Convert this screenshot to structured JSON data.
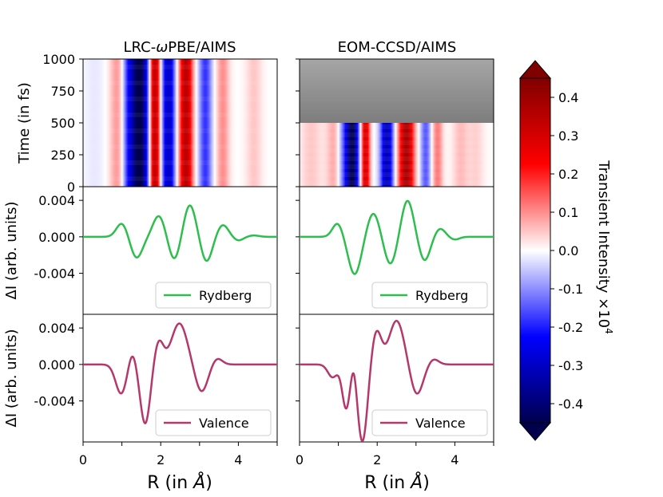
{
  "chart_data": {
    "type": "figure-grid",
    "columns": [
      {
        "title_prefix": "LRC-",
        "title_greek": "ω",
        "title_suffix": "PBE/AIMS",
        "heatmap": {
          "type": "heatmap",
          "ylabel": "Time (in fs)",
          "xlim": [
            0,
            5
          ],
          "ylim": [
            0,
            1000
          ],
          "yticks": [
            "0",
            "250",
            "500",
            "750",
            "1000"
          ],
          "time_range": [
            0,
            1000
          ],
          "stripes": [
            {
              "r": 0.3,
              "width": 0.2,
              "value": -0.02
            },
            {
              "r": 0.9,
              "width": 0.15,
              "value": 0.1
            },
            {
              "r": 1.15,
              "width": 0.12,
              "value": -0.15
            },
            {
              "r": 1.45,
              "width": 0.16,
              "value": -0.46
            },
            {
              "r": 1.85,
              "width": 0.09,
              "value": 0.36
            },
            {
              "r": 2.2,
              "width": 0.12,
              "value": -0.3
            },
            {
              "r": 2.65,
              "width": 0.12,
              "value": 0.35
            },
            {
              "r": 3.15,
              "width": 0.12,
              "value": -0.18
            },
            {
              "r": 3.6,
              "width": 0.12,
              "value": 0.1
            },
            {
              "r": 4.4,
              "width": 0.15,
              "value": 0.05
            }
          ]
        },
        "rydberg": {
          "type": "line",
          "legend": "Rydberg",
          "color": "#2dbe4e",
          "ylabel": "ΔI (arb. units)",
          "ylim": [
            -0.0085,
            0.0055
          ],
          "yticks": [
            "0.004",
            "0.000",
            "-0.004"
          ],
          "components": [
            {
              "amp": 0.0015,
              "center": 1.0,
              "width": 0.14
            },
            {
              "amp": -0.0023,
              "center": 1.38,
              "width": 0.15
            },
            {
              "amp": 0.0023,
              "center": 1.95,
              "width": 0.15
            },
            {
              "amp": -0.0025,
              "center": 2.35,
              "width": 0.14
            },
            {
              "amp": 0.0035,
              "center": 2.75,
              "width": 0.15
            },
            {
              "amp": -0.0027,
              "center": 3.18,
              "width": 0.14
            },
            {
              "amp": 0.0013,
              "center": 3.6,
              "width": 0.14
            },
            {
              "amp": -0.0004,
              "center": 4.0,
              "width": 0.12
            },
            {
              "amp": 0.00015,
              "center": 4.4,
              "width": 0.13
            }
          ]
        },
        "valence": {
          "type": "line",
          "legend": "Valence",
          "color": "#b5386b",
          "ylabel": "ΔI (arb. units)",
          "ylim": [
            -0.0085,
            0.0055
          ],
          "yticks": [
            "0.004",
            "0.000",
            "-0.004"
          ],
          "components": [
            {
              "amp": -0.0032,
              "center": 0.98,
              "width": 0.14
            },
            {
              "amp": 0.0015,
              "center": 1.27,
              "width": 0.1
            },
            {
              "amp": -0.0065,
              "center": 1.6,
              "width": 0.13
            },
            {
              "amp": 0.0026,
              "center": 1.95,
              "width": 0.12
            },
            {
              "amp": 0.0045,
              "center": 2.48,
              "width": 0.2
            },
            {
              "amp": -0.003,
              "center": 3.05,
              "width": 0.16
            },
            {
              "amp": 0.0007,
              "center": 3.45,
              "width": 0.13
            }
          ]
        }
      },
      {
        "title_prefix": "",
        "title_greek": "",
        "title_suffix": "EOM-CCSD/AIMS",
        "heatmap": {
          "type": "heatmap",
          "xlim": [
            0,
            5
          ],
          "ylim": [
            0,
            1000
          ],
          "time_range": [
            0,
            500
          ],
          "unavailable_range": [
            500,
            1000
          ],
          "stripes": [
            {
              "r": 0.3,
              "width": 0.2,
              "value": 0.05
            },
            {
              "r": 0.9,
              "width": 0.15,
              "value": 0.08
            },
            {
              "r": 1.1,
              "width": 0.1,
              "value": -0.1
            },
            {
              "r": 1.35,
              "width": 0.12,
              "value": -0.45
            },
            {
              "r": 1.7,
              "width": 0.08,
              "value": 0.3
            },
            {
              "r": 2.25,
              "width": 0.12,
              "value": -0.32
            },
            {
              "r": 2.75,
              "width": 0.14,
              "value": 0.38
            },
            {
              "r": 3.25,
              "width": 0.1,
              "value": -0.15
            },
            {
              "r": 3.55,
              "width": 0.1,
              "value": 0.12
            },
            {
              "r": 4.15,
              "width": 0.15,
              "value": 0.06
            },
            {
              "r": 4.55,
              "width": 0.15,
              "value": 0.04
            }
          ]
        },
        "rydberg": {
          "type": "line",
          "legend": "Rydberg",
          "color": "#2dbe4e",
          "ylim": [
            -0.0085,
            0.0055
          ],
          "components": [
            {
              "amp": 0.0015,
              "center": 0.98,
              "width": 0.13
            },
            {
              "amp": -0.0041,
              "center": 1.42,
              "width": 0.16
            },
            {
              "amp": 0.0026,
              "center": 1.9,
              "width": 0.15
            },
            {
              "amp": -0.003,
              "center": 2.34,
              "width": 0.15
            },
            {
              "amp": 0.004,
              "center": 2.78,
              "width": 0.15
            },
            {
              "amp": -0.0026,
              "center": 3.22,
              "width": 0.14
            },
            {
              "amp": 0.0009,
              "center": 3.62,
              "width": 0.13
            },
            {
              "amp": -0.0003,
              "center": 4.0,
              "width": 0.12
            }
          ]
        },
        "valence": {
          "type": "line",
          "legend": "Valence",
          "color": "#b5386b",
          "ylim": [
            -0.0085,
            0.0055
          ],
          "components": [
            {
              "amp": -0.0014,
              "center": 0.85,
              "width": 0.12
            },
            {
              "amp": -0.0048,
              "center": 1.2,
              "width": 0.1
            },
            {
              "amp": 0.0016,
              "center": 1.4,
              "width": 0.07
            },
            {
              "amp": -0.0085,
              "center": 1.62,
              "width": 0.13
            },
            {
              "amp": 0.0037,
              "center": 1.98,
              "width": 0.13
            },
            {
              "amp": 0.0048,
              "center": 2.5,
              "width": 0.19
            },
            {
              "amp": -0.0033,
              "center": 3.02,
              "width": 0.16
            },
            {
              "amp": 0.0006,
              "center": 3.45,
              "width": 0.13
            }
          ]
        }
      }
    ],
    "xaxis": {
      "label_prefix": "R",
      "label_unit_prefix": "(in ",
      "label_unit_symbol": "Å",
      "label_unit_suffix": ")",
      "xlim": [
        0,
        5
      ],
      "xticks": [
        "0",
        "2",
        "4"
      ]
    },
    "colorbar": {
      "label": "Transient Intensity ×10",
      "label_exponent": "4",
      "vmin": -0.45,
      "vmax": 0.45,
      "ticks": [
        "0.4",
        "0.3",
        "0.2",
        "0.1",
        "0.0",
        "-0.1",
        "-0.2",
        "-0.3",
        "-0.4"
      ],
      "cmap": "seismic",
      "extend": "both"
    }
  }
}
